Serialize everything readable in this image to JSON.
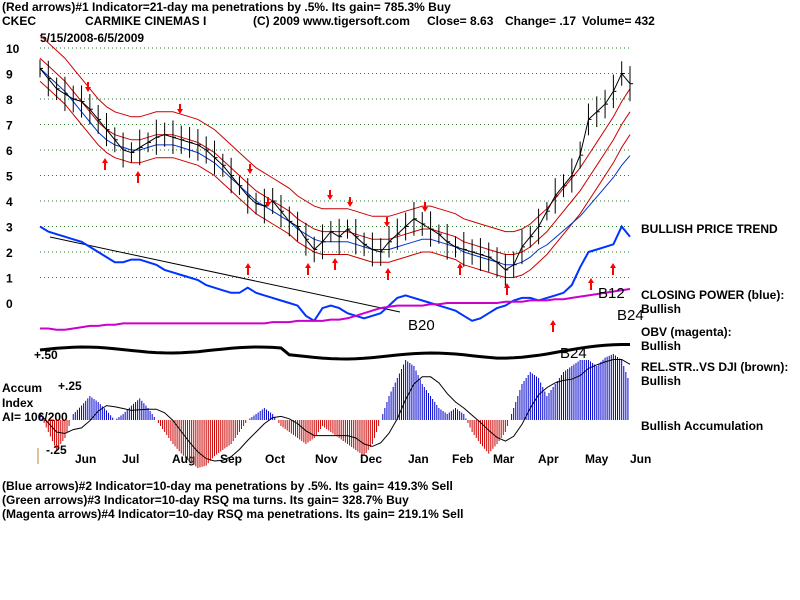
{
  "header": {
    "line1": "(Red arrows)#1 Indicator=21-day ma penetrations by .5%. Its gain= 785.3% Buy",
    "ticker": "CKEC",
    "company": "CARMIKE CINEMAS I",
    "copyright": "(C) 2009 www.tigersoft.com",
    "close": "Close=  8.63",
    "change": "Change= .17",
    "volume": "Volume= 432",
    "date_range": "5/15/2008-6/5/2009"
  },
  "left_labels": {
    "accum": "Accum",
    "index": "Index",
    "ai": "AI= 106/200"
  },
  "right_labels": {
    "price_trend": "BULLISH PRICE TREND",
    "closing_power": "CLOSING POWER (blue):",
    "closing_power_value": "Bullish",
    "obv": "OBV (magenta):",
    "obv_value": "Bullish",
    "relstr": "REL.STR..VS DJI (brown):",
    "relstr_value": "Bullish",
    "accumulation": "Bullish Accumulation"
  },
  "footer": {
    "line1": "(Blue arrows)#2 Indicator=10-day ma penetrations by .5%. Its gain= 419.3% Sell",
    "line2": "(Green arrows)#3 Indicator=10-day RSQ ma turns. Its gain= 328.7% Buy",
    "line3": "(Magenta arrows)#4 Indicator=10-day RSQ ma penetrations. Its gain= 219.1% Sell"
  },
  "colors": {
    "price": "#000000",
    "ma": "#cc0000",
    "closing_power": "#0033ff",
    "obv": "#cc00cc",
    "relstr": "#5a1a00",
    "accum_pos": "#0000cc",
    "accum_neg": "#cc0000",
    "arrow": "#ff0000"
  },
  "chart_data": {
    "type": "line",
    "ylim": [
      0,
      10
    ],
    "y_ticks": [
      "10",
      "9",
      "8",
      "7",
      "6",
      "5",
      "4",
      "3",
      "2",
      "1",
      "0"
    ],
    "x_months": [
      "Jun",
      "Jul",
      "Aug",
      "Sep",
      "Oct",
      "Nov",
      "Dec",
      "Jan",
      "Feb",
      "Mar",
      "Apr",
      "May",
      "Jun"
    ],
    "accum_ticks": [
      "+.50",
      "+.25",
      "-.25"
    ],
    "signal_labels": [
      "B20",
      "B12",
      "B24",
      "B24"
    ],
    "price_close": [
      9.2,
      8.8,
      8.4,
      8.2,
      8.0,
      7.9,
      7.6,
      7.2,
      6.8,
      6.4,
      6.0,
      5.9,
      6.1,
      6.3,
      6.5,
      6.6,
      6.5,
      6.4,
      6.3,
      6.2,
      6.0,
      5.7,
      5.4,
      5.0,
      4.6,
      4.2,
      3.9,
      3.8,
      4.0,
      3.6,
      3.2,
      3.0,
      2.5,
      2.1,
      2.4,
      2.8,
      2.6,
      2.9,
      2.6,
      2.3,
      2.1,
      2.0,
      2.4,
      2.7,
      3.0,
      3.3,
      3.1,
      2.9,
      2.7,
      2.4,
      2.2,
      2.1,
      2.0,
      1.9,
      1.8,
      1.6,
      1.3,
      1.5,
      2.2,
      2.6,
      3.0,
      3.6,
      4.2,
      4.6,
      5.0,
      5.8,
      7.2,
      7.5,
      7.8,
      8.3,
      9.0,
      8.6
    ],
    "ma21": [
      9.6,
      9.3,
      9.0,
      8.7,
      8.3,
      7.9,
      7.5,
      7.1,
      6.8,
      6.6,
      6.5,
      6.4,
      6.4,
      6.5,
      6.6,
      6.6,
      6.6,
      6.5,
      6.4,
      6.3,
      6.1,
      5.9,
      5.6,
      5.3,
      5.0,
      4.7,
      4.4,
      4.2,
      4.0,
      3.8,
      3.6,
      3.3,
      3.1,
      2.9,
      2.8,
      2.8,
      2.8,
      2.8,
      2.7,
      2.6,
      2.5,
      2.5,
      2.5,
      2.6,
      2.7,
      2.8,
      2.9,
      2.9,
      2.8,
      2.7,
      2.6,
      2.4,
      2.3,
      2.2,
      2.1,
      2.0,
      1.9,
      1.9,
      2.0,
      2.2,
      2.5,
      2.8,
      3.2,
      3.6,
      4.0,
      4.4,
      4.9,
      5.4,
      5.9,
      6.4,
      7.0,
      7.5
    ],
    "closing_power": [
      3.0,
      2.8,
      2.7,
      2.6,
      2.5,
      2.4,
      2.2,
      2.0,
      1.8,
      1.6,
      1.6,
      1.7,
      1.7,
      1.6,
      1.5,
      1.3,
      1.2,
      1.1,
      1.0,
      0.9,
      0.7,
      0.6,
      0.5,
      0.4,
      0.4,
      0.6,
      0.4,
      0.3,
      0.2,
      0.1,
      0.0,
      -0.1,
      -0.5,
      -0.7,
      -0.2,
      -0.1,
      -0.2,
      -0.4,
      -0.5,
      -0.6,
      -0.5,
      -0.4,
      -0.1,
      0.2,
      0.3,
      0.2,
      0.1,
      0.0,
      -0.1,
      -0.2,
      -0.3,
      -0.5,
      -0.7,
      -0.6,
      -0.4,
      -0.2,
      -0.1,
      0.1,
      0.2,
      0.2,
      0.1,
      0.2,
      0.3,
      0.4,
      0.7,
      1.4,
      2.0,
      2.1,
      2.2,
      2.3,
      3.0,
      2.6
    ],
    "obv": [
      -1.0,
      -1.0,
      -1.05,
      -1.05,
      -1.0,
      -0.95,
      -0.9,
      -0.9,
      -0.85,
      -0.85,
      -0.8,
      -0.8,
      -0.8,
      -0.8,
      -0.8,
      -0.8,
      -0.8,
      -0.8,
      -0.8,
      -0.8,
      -0.8,
      -0.8,
      -0.8,
      -0.8,
      -0.8,
      -0.8,
      -0.8,
      -0.8,
      -0.75,
      -0.75,
      -0.75,
      -0.7,
      -0.7,
      -0.7,
      -0.7,
      -0.65,
      -0.65,
      -0.6,
      -0.5,
      -0.4,
      -0.3,
      -0.2,
      -0.15,
      -0.1,
      -0.1,
      -0.1,
      -0.1,
      -0.05,
      -0.05,
      0.0,
      0.0,
      0.0,
      0.0,
      0.0,
      0.0,
      0.0,
      0.05,
      0.05,
      0.05,
      0.1,
      0.1,
      0.1,
      0.15,
      0.15,
      0.2,
      0.25,
      0.3,
      0.35,
      0.4,
      0.45,
      0.5,
      0.55
    ],
    "accum": [
      0.05,
      -0.1,
      -0.25,
      -0.15,
      0.05,
      0.12,
      0.2,
      0.15,
      0.08,
      0.0,
      0.05,
      0.12,
      0.18,
      0.1,
      0.0,
      -0.1,
      -0.2,
      -0.28,
      -0.35,
      -0.4,
      -0.38,
      -0.3,
      -0.25,
      -0.2,
      -0.1,
      0.0,
      0.05,
      0.1,
      0.05,
      -0.05,
      -0.1,
      -0.15,
      -0.2,
      -0.15,
      -0.05,
      -0.1,
      -0.15,
      -0.2,
      -0.25,
      -0.3,
      -0.2,
      0.0,
      0.2,
      0.35,
      0.5,
      0.45,
      0.3,
      0.2,
      0.1,
      0.05,
      0.1,
      0.05,
      -0.1,
      -0.2,
      -0.28,
      -0.2,
      -0.1,
      0.1,
      0.3,
      0.4,
      0.35,
      0.2,
      0.3,
      0.4,
      0.45,
      0.5,
      0.5,
      0.45,
      0.52,
      0.55,
      0.5,
      0.3
    ]
  }
}
